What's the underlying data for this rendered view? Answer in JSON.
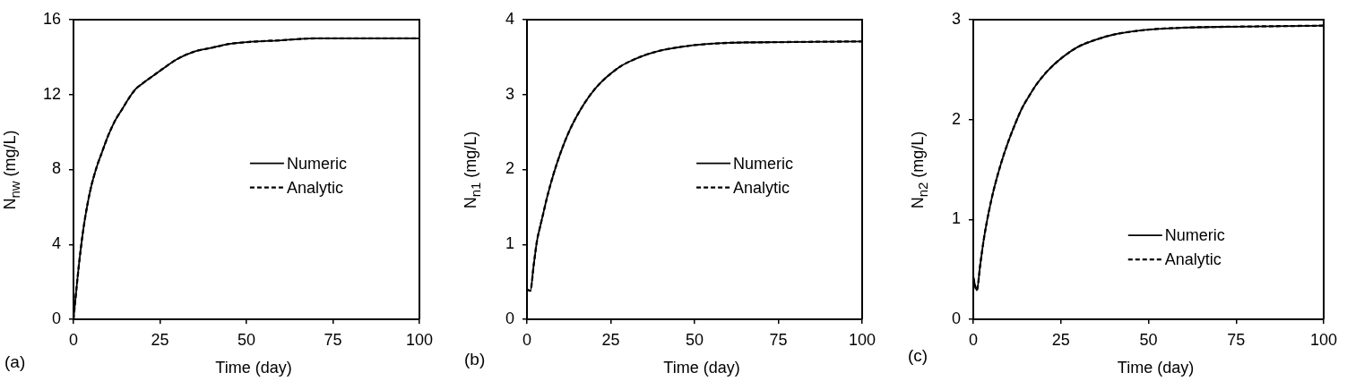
{
  "chart_data": [
    {
      "type": "line",
      "xlabel": "Time (day)",
      "ylabel": "N$_{nw}$ (mg/L)",
      "annotations": [
        "(a)"
      ],
      "x": [
        0,
        1,
        2,
        3,
        4,
        5,
        6,
        7,
        8,
        10,
        12,
        14,
        16,
        18,
        20,
        23,
        26,
        30,
        35,
        40,
        45,
        50,
        60,
        70,
        80,
        90,
        100
      ],
      "series": [
        {
          "name": "Numeric",
          "color": "#000000",
          "line_style": "solid",
          "values": [
            0,
            1.9,
            3.6,
            5.0,
            6.1,
            7.0,
            7.7,
            8.3,
            8.8,
            9.8,
            10.6,
            11.2,
            11.8,
            12.3,
            12.6,
            13.0,
            13.4,
            13.9,
            14.3,
            14.5,
            14.7,
            14.8,
            14.9,
            15.0,
            15.0,
            15.0,
            15.0
          ]
        },
        {
          "name": "Analytic",
          "color": "#000000",
          "line_style": "dashed",
          "values": [
            0,
            1.9,
            3.6,
            5.0,
            6.1,
            7.0,
            7.7,
            8.3,
            8.8,
            9.8,
            10.6,
            11.2,
            11.8,
            12.3,
            12.6,
            13.0,
            13.4,
            13.9,
            14.3,
            14.5,
            14.7,
            14.8,
            14.9,
            15.0,
            15.0,
            15.0,
            15.0
          ]
        }
      ],
      "xlim": [
        0,
        100
      ],
      "xticks": [
        0,
        25,
        50,
        75,
        100
      ],
      "ylim": [
        0,
        16
      ],
      "yticks": [
        0,
        4,
        8,
        12,
        16
      ],
      "legend": "right"
    },
    {
      "type": "line",
      "xlabel": "Time (day)",
      "ylabel": "N$_{n1}$ (mg/L)",
      "annotations": [
        "(b)"
      ],
      "x": [
        0,
        1,
        2,
        3,
        4,
        5,
        6,
        8,
        10,
        12,
        14,
        16,
        18,
        20,
        22,
        25,
        28,
        32,
        36,
        40,
        45,
        50,
        60,
        75,
        100
      ],
      "series": [
        {
          "name": "Numeric",
          "color": "#000000",
          "line_style": "solid",
          "values": [
            0.4,
            0.38,
            0.72,
            1.05,
            1.25,
            1.44,
            1.63,
            1.95,
            2.22,
            2.45,
            2.64,
            2.8,
            2.94,
            3.06,
            3.16,
            3.28,
            3.38,
            3.47,
            3.54,
            3.59,
            3.63,
            3.66,
            3.69,
            3.7,
            3.71
          ]
        },
        {
          "name": "Analytic",
          "color": "#000000",
          "line_style": "dashed",
          "values": [
            0.4,
            0.38,
            0.72,
            1.05,
            1.25,
            1.44,
            1.63,
            1.95,
            2.22,
            2.45,
            2.64,
            2.8,
            2.94,
            3.06,
            3.16,
            3.28,
            3.38,
            3.47,
            3.54,
            3.59,
            3.63,
            3.66,
            3.69,
            3.7,
            3.71
          ]
        }
      ],
      "xlim": [
        0,
        100
      ],
      "xticks": [
        0,
        25,
        50,
        75,
        100
      ],
      "ylim": [
        0,
        4
      ],
      "yticks": [
        0,
        1,
        2,
        3,
        4
      ],
      "legend": "right"
    },
    {
      "type": "line",
      "xlabel": "Time (day)",
      "ylabel": "N$_{n2}$ (mg/L)",
      "annotations": [
        "(c)"
      ],
      "x": [
        0,
        1,
        2,
        3,
        4,
        5,
        6,
        8,
        10,
        12,
        14,
        16,
        18,
        21,
        25,
        30,
        35,
        40,
        50,
        60,
        75,
        100
      ],
      "series": [
        {
          "name": "Numeric",
          "color": "#000000",
          "line_style": "solid",
          "values": [
            0.42,
            0.29,
            0.55,
            0.8,
            1.0,
            1.17,
            1.32,
            1.57,
            1.78,
            1.96,
            2.12,
            2.24,
            2.35,
            2.48,
            2.61,
            2.73,
            2.8,
            2.85,
            2.9,
            2.92,
            2.93,
            2.94
          ]
        },
        {
          "name": "Analytic",
          "color": "#000000",
          "line_style": "dashed",
          "values": [
            0.42,
            0.29,
            0.55,
            0.8,
            1.0,
            1.17,
            1.32,
            1.57,
            1.78,
            1.96,
            2.12,
            2.24,
            2.35,
            2.48,
            2.61,
            2.73,
            2.8,
            2.85,
            2.9,
            2.92,
            2.93,
            2.94
          ]
        }
      ],
      "xlim": [
        0,
        100
      ],
      "xticks": [
        0,
        25,
        50,
        75,
        100
      ],
      "ylim": [
        0,
        3
      ],
      "yticks": [
        0,
        1,
        2,
        3
      ],
      "legend": "bottom"
    }
  ]
}
